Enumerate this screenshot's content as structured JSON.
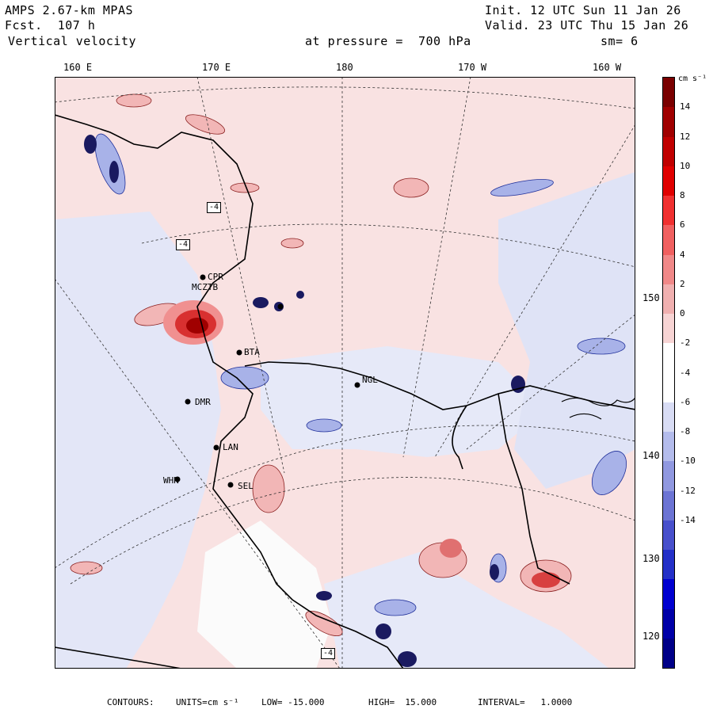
{
  "header": {
    "model": "AMPS 2.67-km MPAS",
    "fcst": "Fcst.  107 h",
    "field": "Vertical velocity",
    "init": "Init. 12 UTC Sun 11 Jan 26",
    "valid": "Valid. 23 UTC Thu 15 Jan 26",
    "pressure": "at pressure =  700 hPa",
    "smoothing": "sm= 6"
  },
  "longitude_labels": [
    "160 E",
    "170 E",
    "180",
    "170 W",
    "160 W"
  ],
  "latitude_labels": [
    "150 W",
    "140 W",
    "130 W",
    "120 W"
  ],
  "stations": [
    "CPR",
    "MCZTB",
    "BTA",
    "NGL",
    "LAN",
    "DMR",
    "WHN",
    "SEL"
  ],
  "contour_boxes": [
    "-4",
    "-4",
    "-4"
  ],
  "colorbar": {
    "units_label": "cm s⁻¹",
    "ticks": [
      "14",
      "12",
      "10",
      "8",
      "6",
      "4",
      "2",
      "0",
      "-2",
      "-4",
      "-6",
      "-8",
      "-10",
      "-12",
      "-14"
    ],
    "colors": [
      "#7a0000",
      "#a00000",
      "#c00000",
      "#e00000",
      "#f03030",
      "#f06060",
      "#f08888",
      "#f0b0b0",
      "#f7d4d4",
      "#ffffff",
      "#ffffff",
      "#d8dcf4",
      "#b4bcec",
      "#9098e0",
      "#6c74d4",
      "#4850cc",
      "#2430c8",
      "#0000d0",
      "#0000a8",
      "#000088"
    ]
  },
  "footer": {
    "contours": "CONTOURS:",
    "units": "UNITS=cm s⁻¹",
    "low": "LOW= -15.000",
    "high": "HIGH=  15.000",
    "interval": "INTERVAL=   1.0000"
  },
  "palette": {
    "positive_light": "#f9dede",
    "positive_mid": "#f0a8a8",
    "positive_strong": "#c81818",
    "negative_light": "#dfe3f6",
    "negative_mid": "#a8b2e8",
    "negative_strong": "#3840c0",
    "coast": "#000000",
    "ice_shelf": "#ffffff"
  }
}
